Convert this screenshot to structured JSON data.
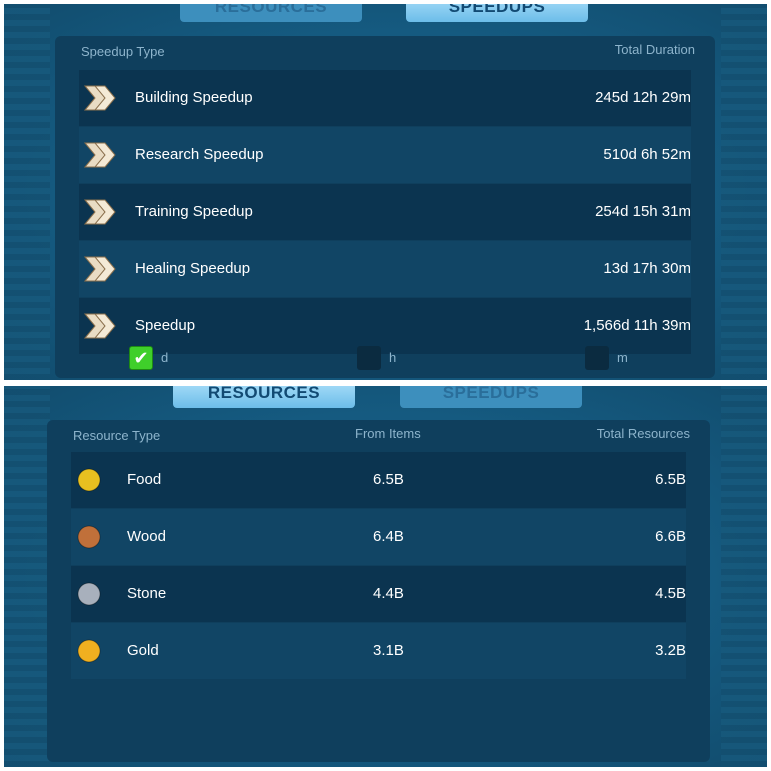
{
  "speedups_screen": {
    "tabs": [
      {
        "label": "RESOURCES",
        "active": false
      },
      {
        "label": "SPEEDUPS",
        "active": true
      }
    ],
    "header": {
      "type": "Speedup Type",
      "duration": "Total Duration"
    },
    "rows": [
      {
        "name": "Building Speedup",
        "duration": "245d 12h 29m",
        "icon": "building-speedup-icon"
      },
      {
        "name": "Research Speedup",
        "duration": "510d 6h 52m",
        "icon": "research-speedup-icon"
      },
      {
        "name": "Training Speedup",
        "duration": "254d 15h 31m",
        "icon": "training-speedup-icon"
      },
      {
        "name": "Healing Speedup",
        "duration": "13d 17h 30m",
        "icon": "healing-speedup-icon"
      },
      {
        "name": "Speedup",
        "duration": "1,566d 11h 39m",
        "icon": "universal-speedup-icon"
      }
    ],
    "units": [
      {
        "label": "d",
        "checked": true
      },
      {
        "label": "h",
        "checked": false
      },
      {
        "label": "m",
        "checked": false
      }
    ]
  },
  "resources_screen": {
    "tabs": [
      {
        "label": "RESOURCES",
        "active": true
      },
      {
        "label": "SPEEDUPS",
        "active": false
      }
    ],
    "header": {
      "type": "Resource Type",
      "from_items": "From Items",
      "total": "Total Resources"
    },
    "rows": [
      {
        "name": "Food",
        "from_items": "6.5B",
        "total": "6.5B",
        "color": "#e8c020"
      },
      {
        "name": "Wood",
        "from_items": "6.4B",
        "total": "6.6B",
        "color": "#c0703a"
      },
      {
        "name": "Stone",
        "from_items": "4.4B",
        "total": "4.5B",
        "color": "#a8b0bc"
      },
      {
        "name": "Gold",
        "from_items": "3.1B",
        "total": "3.2B",
        "color": "#f0b020"
      }
    ]
  }
}
